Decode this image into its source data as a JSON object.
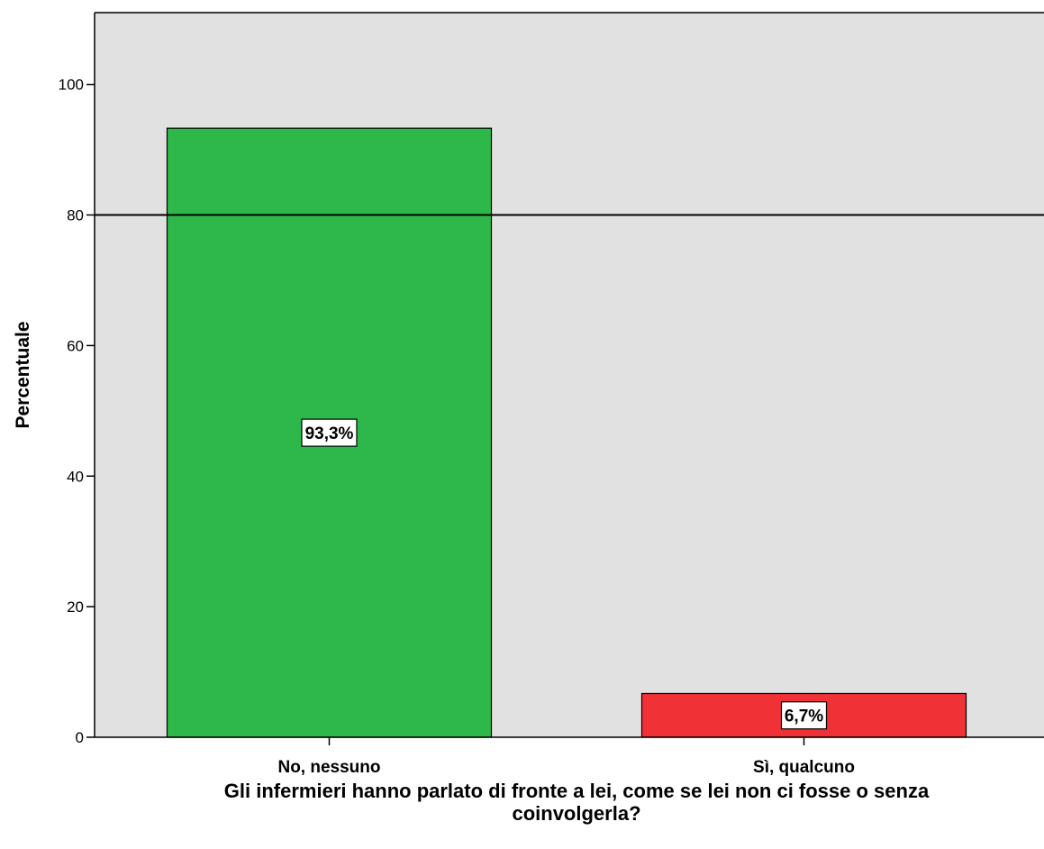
{
  "chart_data": {
    "type": "bar",
    "categories": [
      "No, nessuno",
      "Sì, qualcuno"
    ],
    "values": [
      93.3,
      6.7
    ],
    "data_labels": [
      "93,3%",
      "6,7%"
    ],
    "bar_colors": [
      "#2eb84a",
      "#f03236"
    ],
    "ylabel": "Percentuale",
    "xlabel_lines": [
      "Gli infermieri hanno parlato di fronte a lei, come se lei non ci fosse o senza",
      "coinvolgerla?"
    ],
    "ylim": [
      0,
      111
    ],
    "yticks": [
      0,
      20,
      40,
      60,
      80,
      100
    ],
    "reference_line": 80,
    "plot_background": "#e1e1e1",
    "grid": false
  }
}
